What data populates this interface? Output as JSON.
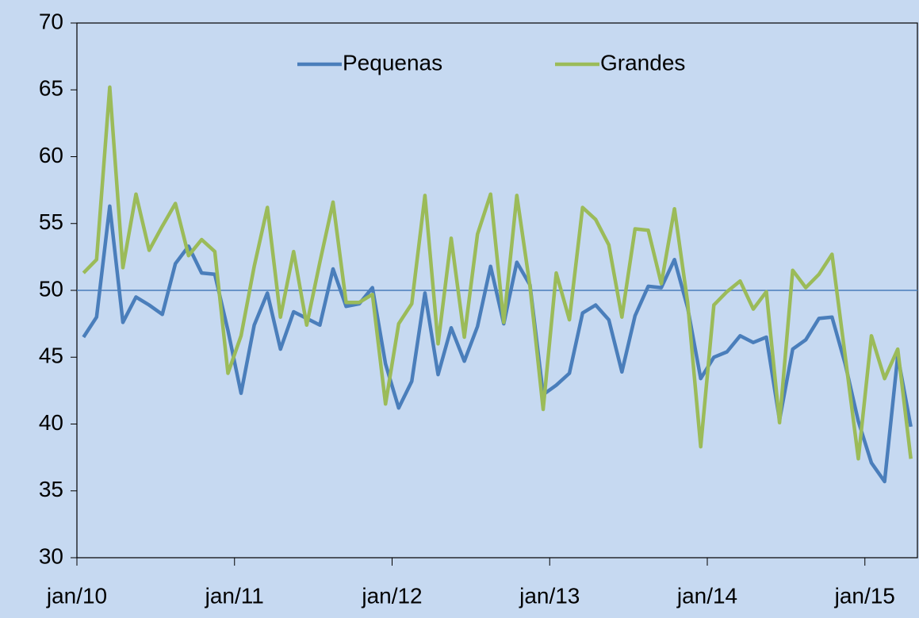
{
  "chart_data": {
    "type": "line",
    "categories": [
      "jan/10",
      null,
      null,
      null,
      null,
      null,
      null,
      null,
      null,
      null,
      null,
      null,
      "jan/11",
      null,
      null,
      null,
      null,
      null,
      null,
      null,
      null,
      null,
      null,
      null,
      "jan/12",
      null,
      null,
      null,
      null,
      null,
      null,
      null,
      null,
      null,
      null,
      null,
      "jan/13",
      null,
      null,
      null,
      null,
      null,
      null,
      null,
      null,
      null,
      null,
      null,
      "jan/14",
      null,
      null,
      null,
      null,
      null,
      null,
      null,
      null,
      null,
      null,
      null,
      "jan/15",
      null,
      null,
      null
    ],
    "series": [
      {
        "name": "Pequenas",
        "color": "#4a7ebb",
        "values": [
          46.5,
          48,
          56.3,
          47.6,
          49.5,
          48.9,
          48.2,
          52,
          53.3,
          51.3,
          51.2,
          47,
          42.3,
          47.4,
          49.8,
          45.6,
          48.4,
          47.9,
          47.4,
          51.6,
          48.8,
          49,
          50.2,
          44.5,
          41.2,
          43.2,
          49.8,
          43.7,
          47.2,
          44.7,
          47.3,
          51.8,
          47.5,
          52.1,
          50.4,
          42.2,
          42.9,
          43.8,
          48.3,
          48.9,
          47.8,
          43.9,
          48.1,
          50.3,
          50.2,
          52.3,
          48.7,
          43.4,
          45,
          45.4,
          46.6,
          46.1,
          46.5,
          40.3,
          45.6,
          46.3,
          47.9,
          48,
          44.5,
          40.2,
          37.1,
          35.7,
          45.1,
          39.8
        ]
      },
      {
        "name": "Grandes",
        "color": "#9bbb59",
        "values": [
          51.3,
          52.3,
          65.2,
          51.7,
          57.2,
          53,
          54.8,
          56.5,
          52.6,
          53.8,
          52.9,
          43.8,
          46.6,
          51.8,
          56.2,
          48,
          52.9,
          47.4,
          52.1,
          56.6,
          49.1,
          49.1,
          49.7,
          41.5,
          47.5,
          49,
          57.1,
          46,
          53.9,
          46.5,
          54.2,
          57.2,
          47.6,
          57.1,
          50.3,
          41.1,
          51.3,
          47.8,
          56.2,
          55.3,
          53.4,
          48,
          54.6,
          54.5,
          50.5,
          56.1,
          49.1,
          38.3,
          48.9,
          49.9,
          50.7,
          48.6,
          49.9,
          40.1,
          51.5,
          50.2,
          51.2,
          52.7,
          45.1,
          37.4,
          46.6,
          43.4,
          45.6,
          37.4
        ]
      }
    ],
    "reference_line": 50,
    "ylim": [
      30,
      70
    ],
    "yticks": [
      30,
      35,
      40,
      45,
      50,
      55,
      60,
      65,
      70
    ],
    "legend": "top"
  }
}
